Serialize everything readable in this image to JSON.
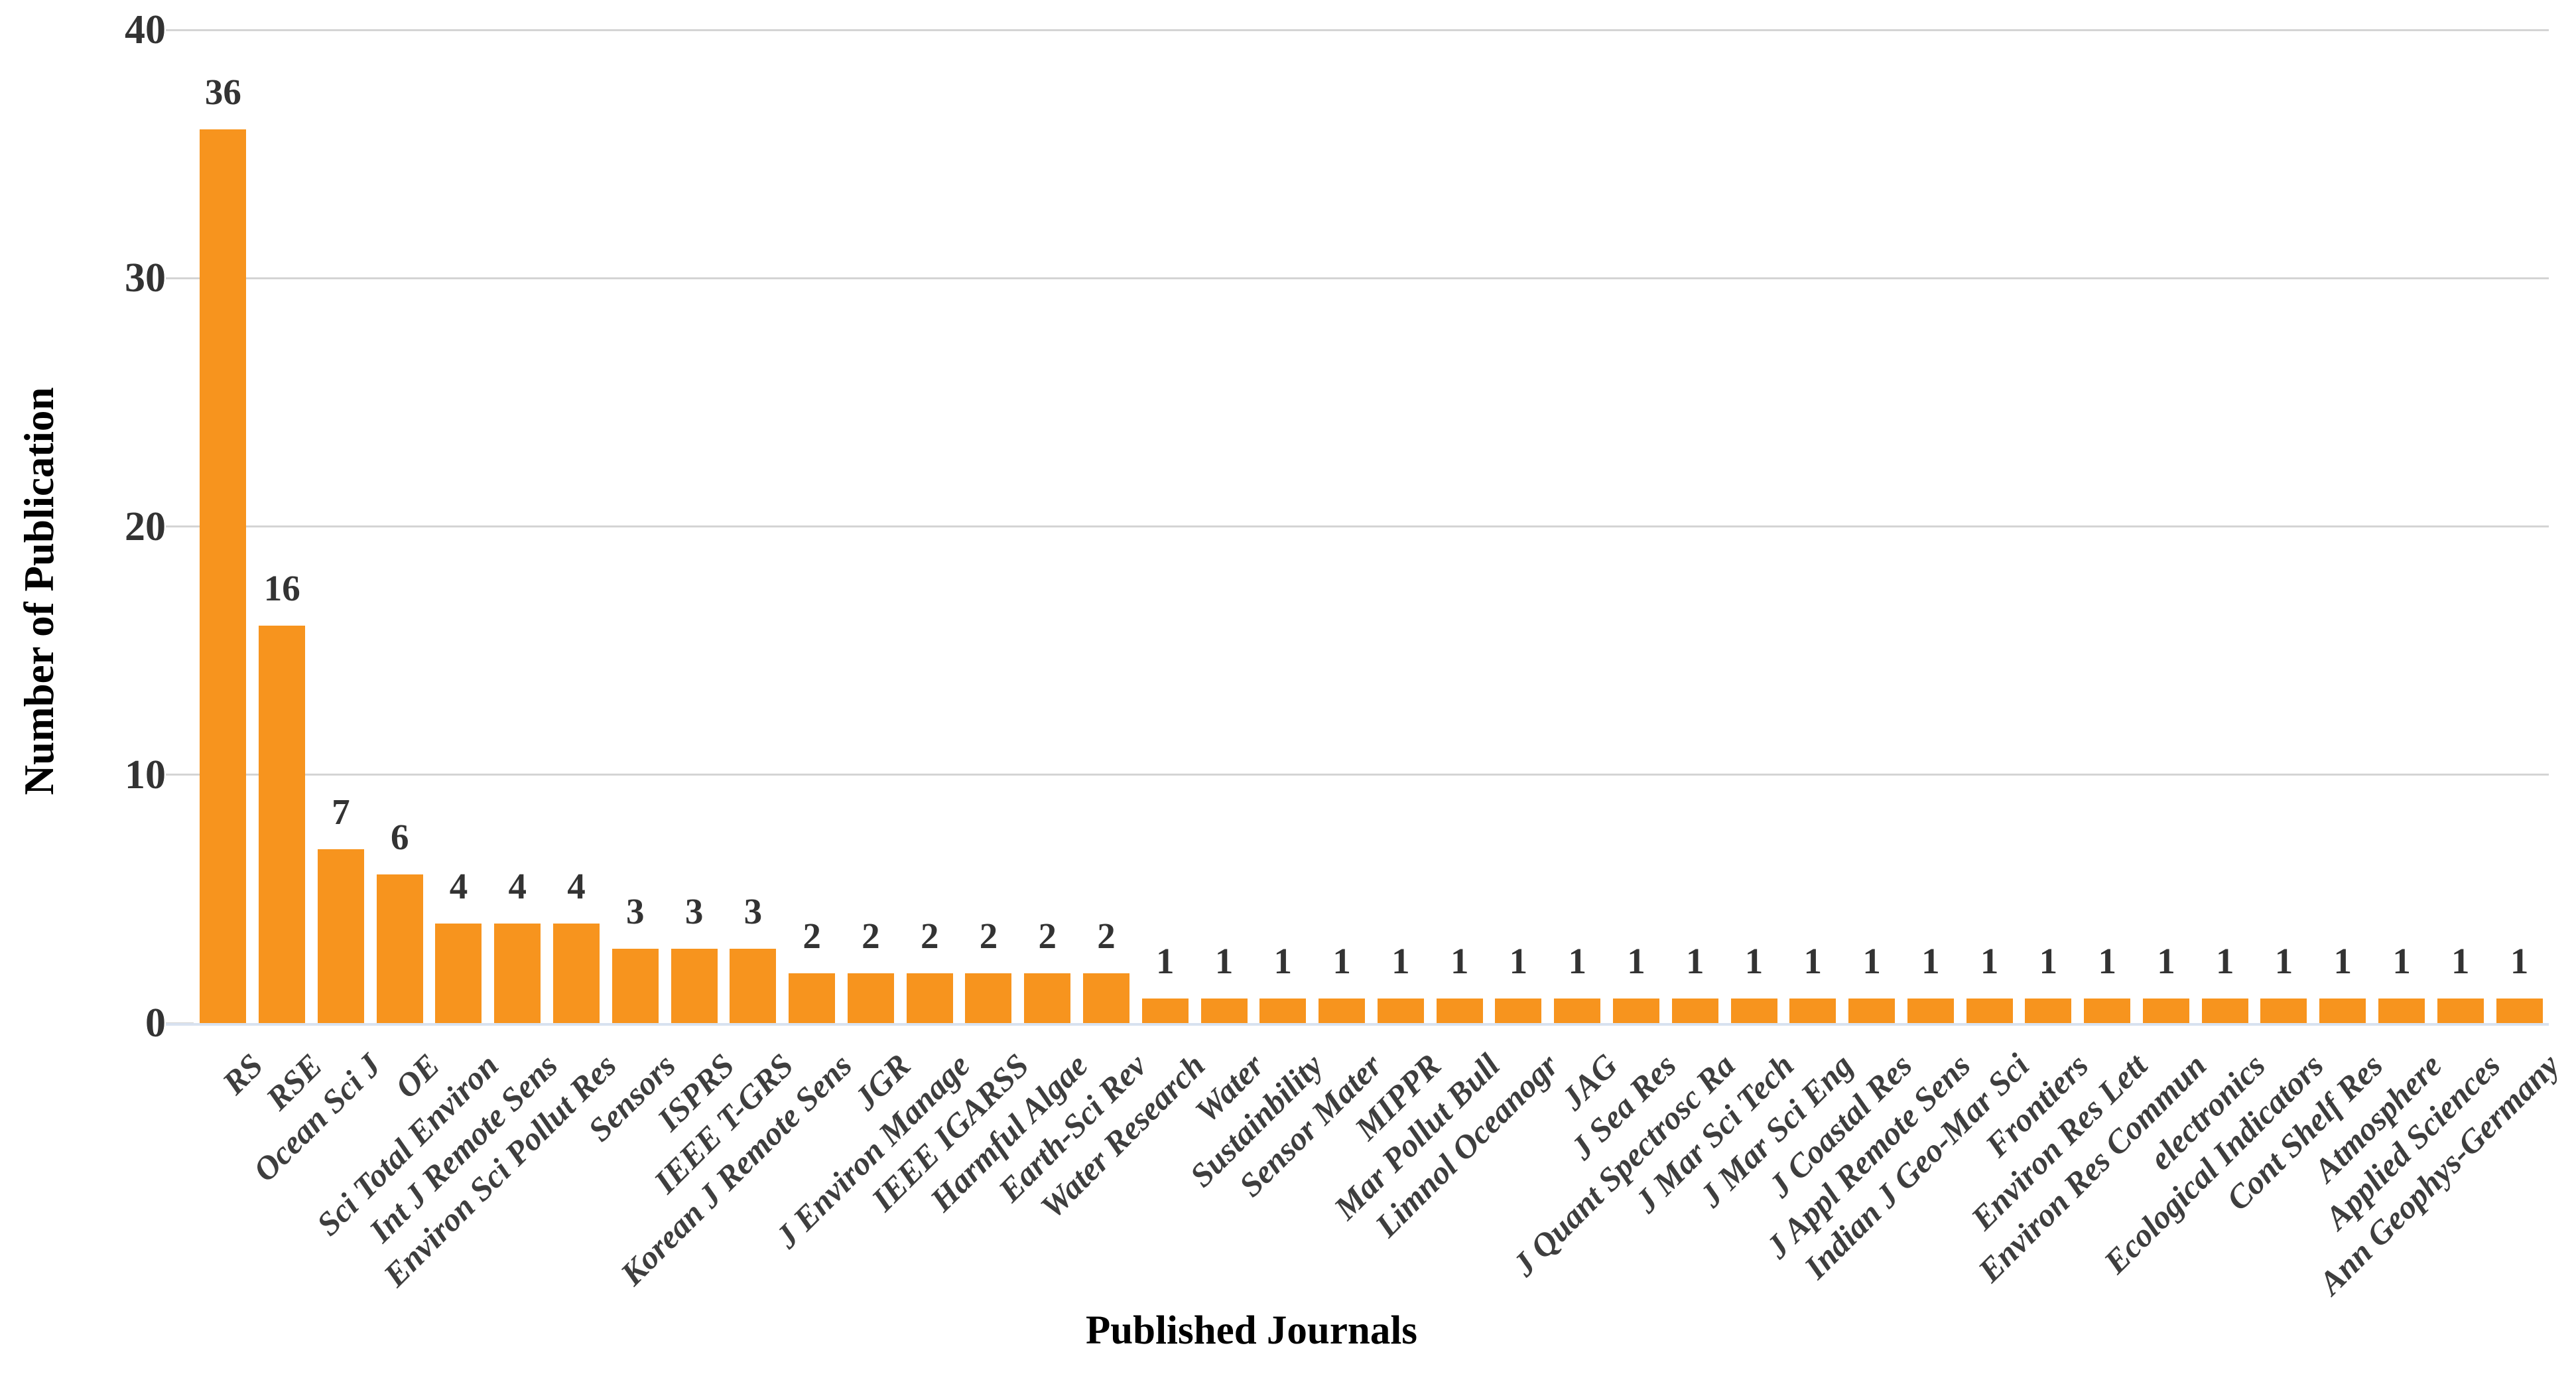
{
  "chart_data": {
    "type": "bar",
    "title": "",
    "xlabel": "Published Journals",
    "ylabel": "Number of Publication",
    "categories": [
      "RS",
      "RSE",
      "Ocean Sci J",
      "OE",
      "Sci Total Environ",
      "Int J Remote Sens",
      "Environ Sci Pollut Res",
      "Sensors",
      "ISPRS",
      "IEEE T-GRS",
      "Korean J Remote Sens",
      "JGR",
      "J Environ Manage",
      "IEEE IGARSS",
      "Harmful Algae",
      "Earth-Sci Rev",
      "Water Research",
      "Water",
      "Sustainbility",
      "Sensor Mater",
      "MIPPR",
      "Mar Pollut Bull",
      "Limnol Oceanogr",
      "JAG",
      "J Sea Res",
      "J Quant Spectrosc Ra",
      "J Mar Sci Tech",
      "J Mar Sci Eng",
      "J Coastal Res",
      "J Appl Remote Sens",
      "Indian J Geo-Mar Sci",
      "Frontiers",
      "Environ Res Lett",
      "Environ Res Commun",
      "electronics",
      "Ecological Indicators",
      "Cont Shelf Res",
      "Atmosphere",
      "Applied Sciences",
      "Ann Geophys-Germany"
    ],
    "values": [
      36,
      16,
      7,
      6,
      4,
      4,
      4,
      3,
      3,
      3,
      2,
      2,
      2,
      2,
      2,
      2,
      1,
      1,
      1,
      1,
      1,
      1,
      1,
      1,
      1,
      1,
      1,
      1,
      1,
      1,
      1,
      1,
      1,
      1,
      1,
      1,
      1,
      1,
      1,
      1
    ],
    "data_labels": true,
    "ylim": [
      0,
      40
    ],
    "yticks": [
      0,
      10,
      20,
      30,
      40
    ],
    "grid": "horizontal",
    "x_tick_rotation_deg": 45,
    "legend": "none",
    "bar_color": "#F7941E",
    "text_color": "#333333",
    "category_text_color": "#3E3E3E",
    "gridline_color": "#D4D4D4",
    "axis_line_color": "#D8E2F0"
  }
}
